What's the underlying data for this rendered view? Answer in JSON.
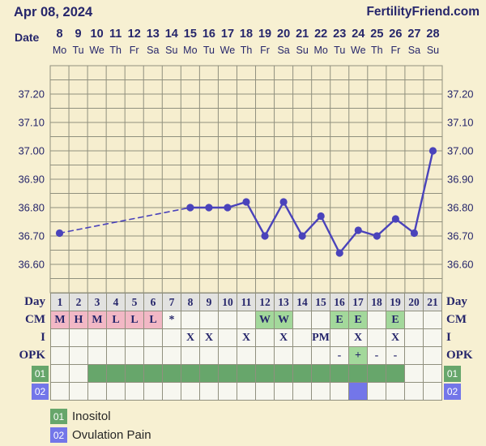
{
  "header": {
    "date_label": "Apr 08, 2024",
    "site_link": "FertilityFriend.com"
  },
  "date_row": {
    "label": "Date",
    "dates": [
      "8",
      "9",
      "10",
      "11",
      "12",
      "13",
      "14",
      "15",
      "16",
      "17",
      "18",
      "19",
      "20",
      "21",
      "22",
      "23",
      "24",
      "25",
      "26",
      "27",
      "28"
    ],
    "weekdays": [
      "Mo",
      "Tu",
      "We",
      "Th",
      "Fr",
      "Sa",
      "Su",
      "Mo",
      "Tu",
      "We",
      "Th",
      "Fr",
      "Sa",
      "Su",
      "Mo",
      "Tu",
      "We",
      "Th",
      "Fr",
      "Sa",
      "Su"
    ]
  },
  "chart_data": {
    "type": "line",
    "title": "Basal body temperature by cycle day",
    "x_days": [
      1,
      2,
      3,
      4,
      5,
      6,
      7,
      8,
      9,
      10,
      11,
      12,
      13,
      14,
      15,
      16,
      17,
      18,
      19,
      20,
      21
    ],
    "temps": [
      36.71,
      null,
      null,
      null,
      null,
      null,
      null,
      36.8,
      36.8,
      36.8,
      36.82,
      36.7,
      36.82,
      36.7,
      36.77,
      36.64,
      36.72,
      36.7,
      36.76,
      36.71,
      37.0
    ],
    "missing_data_style": "dashed",
    "ylim": [
      36.5,
      37.3
    ],
    "minor_step": 0.05,
    "y_ticks": [
      "37.20",
      "37.10",
      "37.00",
      "36.90",
      "36.80",
      "36.70",
      "36.60"
    ],
    "axis_sides": "both",
    "grid": true
  },
  "table": {
    "day_label": "Day",
    "days": [
      "1",
      "2",
      "3",
      "4",
      "5",
      "6",
      "7",
      "8",
      "9",
      "10",
      "11",
      "12",
      "13",
      "14",
      "15",
      "16",
      "17",
      "18",
      "19",
      "20",
      "21"
    ],
    "rows": [
      {
        "id": "cm",
        "label": "CM",
        "cells": [
          {
            "t": "M",
            "bg": "pink"
          },
          {
            "t": "H",
            "bg": "pink"
          },
          {
            "t": "M",
            "bg": "pink"
          },
          {
            "t": "L",
            "bg": "pink"
          },
          {
            "t": "L",
            "bg": "pink"
          },
          {
            "t": "L",
            "bg": "pink"
          },
          {
            "t": "*"
          },
          {},
          {},
          {},
          {},
          {
            "t": "W",
            "bg": "green"
          },
          {
            "t": "W",
            "bg": "green"
          },
          {},
          {},
          {
            "t": "E",
            "bg": "green"
          },
          {
            "t": "E",
            "bg": "green"
          },
          {},
          {
            "t": "E",
            "bg": "green"
          },
          {},
          {}
        ]
      },
      {
        "id": "i",
        "label": "I",
        "cells": [
          {},
          {},
          {},
          {},
          {},
          {},
          {},
          {
            "t": "X"
          },
          {
            "t": "X"
          },
          {},
          {
            "t": "X"
          },
          {},
          {
            "t": "X"
          },
          {},
          {
            "t": "PM"
          },
          {},
          {
            "t": "X"
          },
          {},
          {
            "t": "X"
          },
          {},
          {}
        ]
      },
      {
        "id": "opk",
        "label": "OPK",
        "cells": [
          {},
          {},
          {},
          {},
          {},
          {},
          {},
          {},
          {},
          {},
          {},
          {},
          {},
          {},
          {},
          {
            "t": "-"
          },
          {
            "t": "+",
            "bg": "green"
          },
          {
            "t": "-"
          },
          {
            "t": "-"
          },
          {},
          {}
        ]
      },
      {
        "id": "01",
        "label": "01",
        "label_style": "box-green",
        "cells": [
          {},
          {},
          {
            "bg": "fill-green"
          },
          {
            "bg": "fill-green"
          },
          {
            "bg": "fill-green"
          },
          {
            "bg": "fill-green"
          },
          {
            "bg": "fill-green"
          },
          {
            "bg": "fill-green"
          },
          {
            "bg": "fill-green"
          },
          {
            "bg": "fill-green"
          },
          {
            "bg": "fill-green"
          },
          {
            "bg": "fill-green"
          },
          {
            "bg": "fill-green"
          },
          {
            "bg": "fill-green"
          },
          {
            "bg": "fill-green"
          },
          {
            "bg": "fill-green"
          },
          {
            "bg": "fill-green"
          },
          {
            "bg": "fill-green"
          },
          {
            "bg": "fill-green"
          },
          {},
          {}
        ]
      },
      {
        "id": "02",
        "label": "02",
        "label_style": "box-blue",
        "cells": [
          {},
          {},
          {},
          {},
          {},
          {},
          {},
          {},
          {},
          {},
          {},
          {},
          {},
          {},
          {},
          {},
          {
            "bg": "fill-blue"
          },
          {},
          {},
          {},
          {}
        ]
      }
    ]
  },
  "legend": [
    {
      "code": "01",
      "label": "Inositol",
      "color": "#67a66b"
    },
    {
      "code": "02",
      "label": "Ovulation Pain",
      "color": "#7376e9"
    }
  ],
  "colors": {
    "background": "#f7f0d2",
    "plot_bg": "#f6eecf",
    "grid": "#90907e",
    "navy": "#26266b",
    "line": "#4a43bb",
    "pink": "#f2b8c5",
    "light_green": "#a3d89b",
    "green": "#67a66b",
    "blue": "#7376e9",
    "day_bg": "#e2e2e0",
    "cell_bg": "#f7f7f0",
    "legend_text": "#262626"
  }
}
